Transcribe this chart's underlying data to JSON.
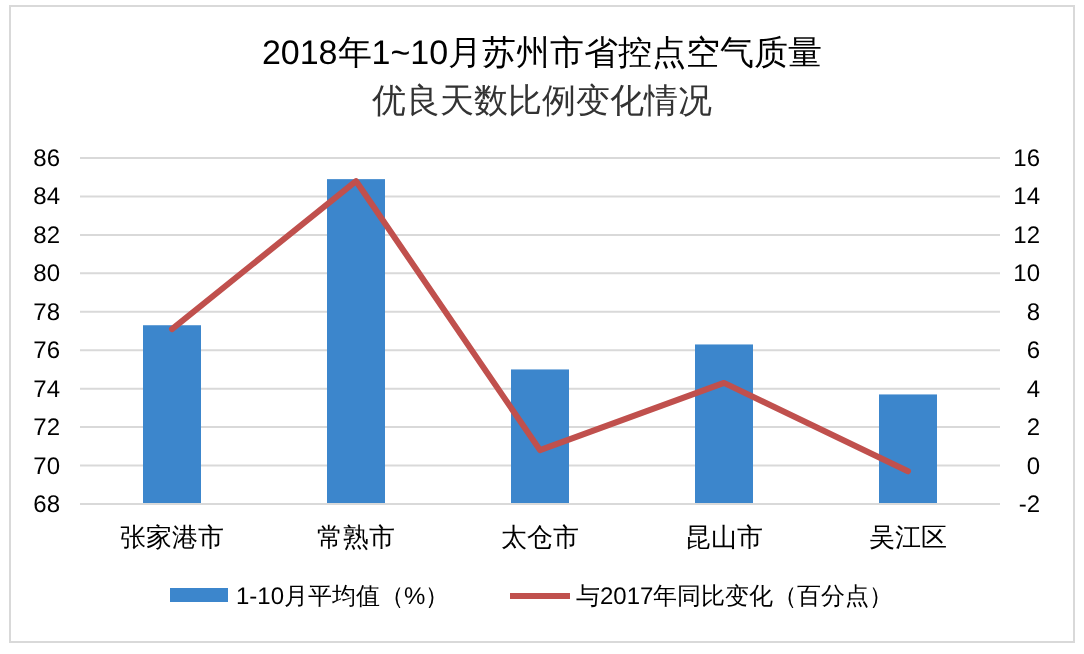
{
  "chart_data": {
    "type": "bar",
    "title": "2018年1~10月苏州市省控点空气质量",
    "subtitle": "优良天数比例变化情况",
    "categories": [
      "张家港市",
      "常熟市",
      "太仓市",
      "昆山市",
      "吴江区"
    ],
    "series": [
      {
        "name": "1-10月平均值（%）",
        "color": "#3c86cc",
        "values": [
          77.3,
          84.9,
          75.0,
          76.3,
          73.7
        ]
      },
      {
        "name": "与2017年同比变化（百分点）",
        "type": "line",
        "axis": "y2",
        "color": "#c0504d",
        "values": [
          7.1,
          14.8,
          0.8,
          4.3,
          -0.3
        ]
      }
    ],
    "ylim": [
      68,
      86
    ],
    "yticks": [
      68,
      70,
      72,
      74,
      76,
      78,
      80,
      82,
      84,
      86
    ],
    "y2lim": [
      -2,
      16
    ],
    "y2ticks": [
      -2,
      0,
      2,
      4,
      6,
      8,
      10,
      12,
      14,
      16
    ],
    "grid": "y",
    "legend": "bottom",
    "marker": "none",
    "line_style": "solid"
  }
}
